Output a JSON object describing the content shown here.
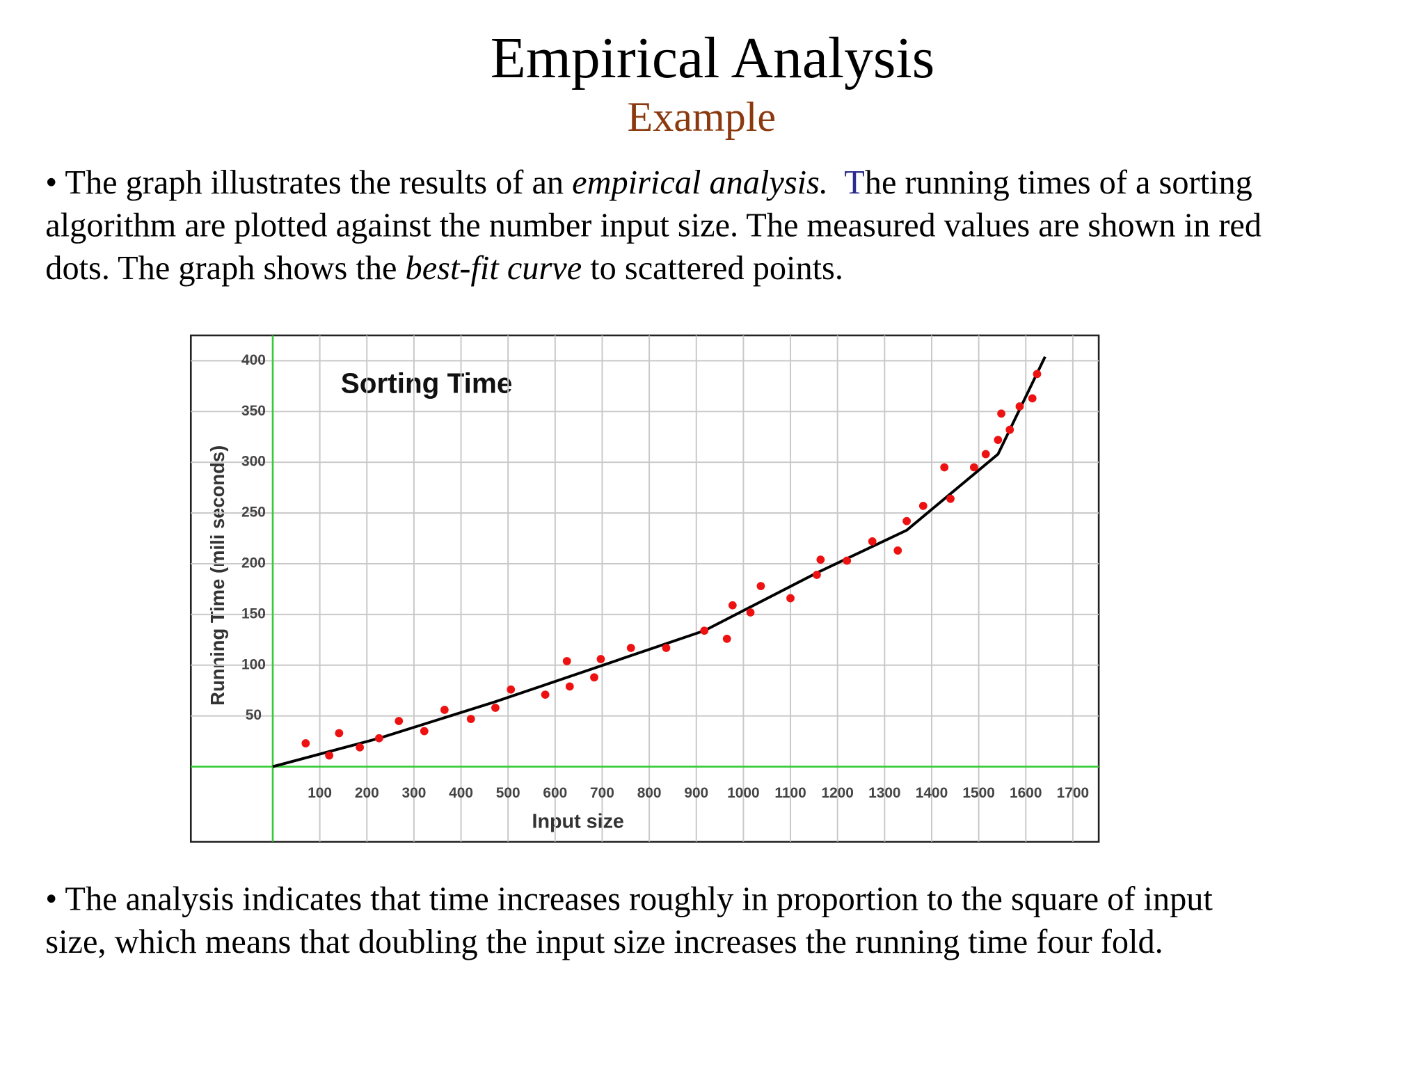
{
  "header": {
    "title": "Empirical Analysis",
    "subtitle": "Example"
  },
  "bullet1": [
    "• The graph illustrates the results of an ",
    "empirical analysis.",
    "T",
    "he running times of a sorting",
    "algorithm are plotted against the number input size. The measured values are shown in red",
    " dots. The graph shows the ",
    "best-fit curve",
    " to scattered points."
  ],
  "bullet2": [
    "• The analysis indicates that time increases roughly  in proportion to the square of input",
    "size, which means that doubling the input size increases the running time four fold."
  ],
  "chart_data": {
    "type": "scatter",
    "title": "Sorting Time",
    "x_label": "Input size",
    "y_label": "Running Time (mili seconds)",
    "xlim": [
      -174,
      1755
    ],
    "ylim": [
      -74,
      425
    ],
    "xticks": [
      100,
      200,
      300,
      400,
      500,
      600,
      700,
      800,
      900,
      1000,
      1100,
      1200,
      1300,
      1400,
      1500,
      1600,
      1700
    ],
    "yticks": [
      50,
      100,
      150,
      200,
      250,
      300,
      350,
      400
    ],
    "grid": true,
    "series": [
      {
        "name": "measured values",
        "color": "#ee1111",
        "x": [
          70,
          120,
          141,
          185,
          226,
          268,
          322,
          365,
          421,
          473,
          506,
          579,
          625,
          631,
          683,
          697,
          761,
          836,
          917,
          965,
          977,
          1015,
          1037,
          1100,
          1156,
          1164,
          1220,
          1274,
          1328,
          1347,
          1382,
          1427,
          1440,
          1490,
          1515,
          1541,
          1548,
          1566,
          1587,
          1614,
          1624
        ],
        "values": [
          23,
          11,
          33,
          19,
          28,
          45,
          35,
          56,
          47,
          58,
          76,
          71,
          104,
          79,
          88,
          106,
          117,
          117,
          134,
          126,
          159,
          152,
          178,
          166,
          189,
          204,
          203,
          222,
          213,
          242,
          257,
          295,
          264,
          295,
          308,
          322,
          348,
          332,
          355,
          363,
          387
        ]
      },
      {
        "name": "best-fit curve",
        "color": "#000000",
        "x": [
          0,
          226,
          473,
          917,
          1156,
          1347,
          1541,
          1641
        ],
        "values": [
          0,
          28,
          64,
          134,
          191,
          233,
          308,
          404
        ]
      }
    ]
  }
}
